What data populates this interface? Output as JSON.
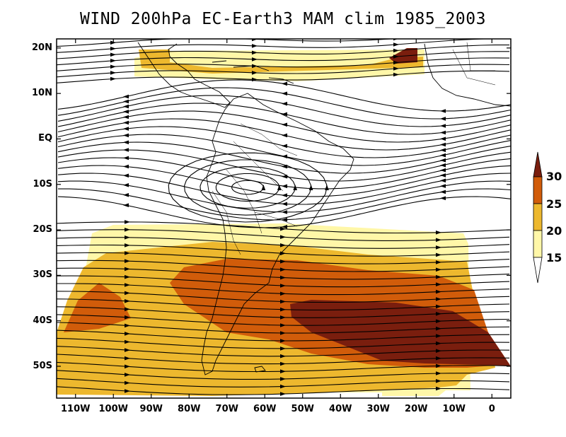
{
  "title": "WIND 200hPa EC-Earth3 MAM clim 1985_2003",
  "map": {
    "type": "streamline map with shaded wind speed",
    "lon_range": [
      -115,
      5
    ],
    "lat_range": [
      -57,
      22
    ],
    "lat_ticks": [
      {
        "value": 20,
        "label": "20N"
      },
      {
        "value": 10,
        "label": "10N"
      },
      {
        "value": 0,
        "label": "EQ"
      },
      {
        "value": -10,
        "label": "10S"
      },
      {
        "value": -20,
        "label": "20S"
      },
      {
        "value": -30,
        "label": "30S"
      },
      {
        "value": -40,
        "label": "40S"
      },
      {
        "value": -50,
        "label": "50S"
      }
    ],
    "lon_ticks": [
      {
        "value": -110,
        "label": "110W"
      },
      {
        "value": -100,
        "label": "100W"
      },
      {
        "value": -90,
        "label": "90W"
      },
      {
        "value": -80,
        "label": "80W"
      },
      {
        "value": -70,
        "label": "70W"
      },
      {
        "value": -60,
        "label": "60W"
      },
      {
        "value": -50,
        "label": "50W"
      },
      {
        "value": -40,
        "label": "40W"
      },
      {
        "value": -30,
        "label": "30W"
      },
      {
        "value": -20,
        "label": "20W"
      },
      {
        "value": -10,
        "label": "10W"
      },
      {
        "value": 0,
        "label": "0"
      }
    ]
  },
  "colorbar": {
    "levels": [
      "15",
      "20",
      "25",
      "30"
    ],
    "colors": [
      "#ffffff",
      "#fff7a8",
      "#edb82e",
      "#d15c0a",
      "#7a1e0e"
    ]
  },
  "colors": {
    "band_15_20": "#fff7a8",
    "band_20_25": "#edb82e",
    "band_25_30": "#d15c0a",
    "band_30_plus": "#7a1e0e",
    "streamline": "#000000",
    "coastline": "#000000"
  }
}
